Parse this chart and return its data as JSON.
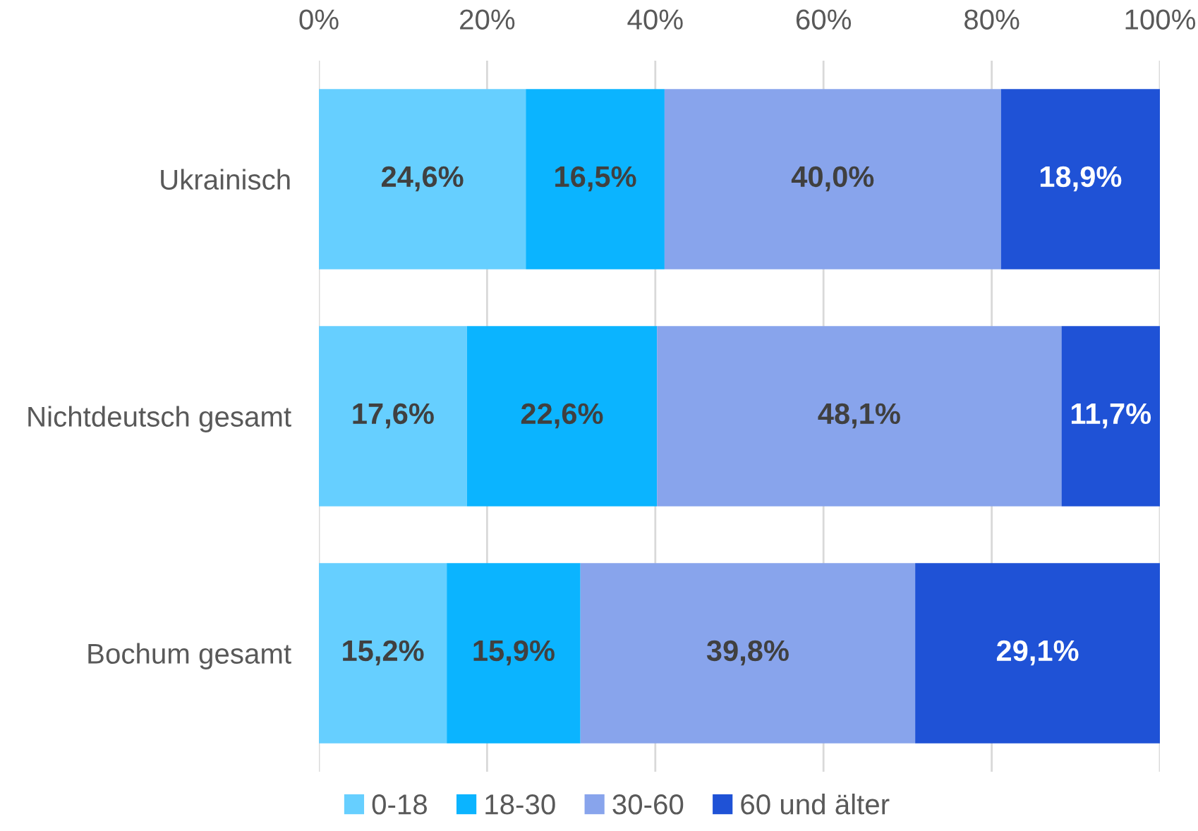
{
  "chart_data": {
    "type": "bar",
    "orientation": "horizontal",
    "stacked": true,
    "categories": [
      "Ukrainisch",
      "Nichtdeutsch gesamt",
      "Bochum gesamt"
    ],
    "series": [
      {
        "name": "0-18",
        "color": "#66cfff",
        "values": [
          24.6,
          17.6,
          15.2
        ],
        "value_labels": [
          "24,6%",
          "17,6%",
          "15,2%"
        ]
      },
      {
        "name": "18-30",
        "color": "#0bb4ff",
        "values": [
          16.5,
          22.6,
          15.9
        ],
        "value_labels": [
          "16,5%",
          "22,6%",
          "15,9%"
        ]
      },
      {
        "name": "30-60",
        "color": "#88a4ec",
        "values": [
          40.0,
          48.1,
          39.8
        ],
        "value_labels": [
          "40,0%",
          "48,1%",
          "39,8%"
        ]
      },
      {
        "name": "60 und älter",
        "color": "#1f52d6",
        "values": [
          18.9,
          11.7,
          29.1
        ],
        "value_labels": [
          "18,9%",
          "11,7%",
          "29,1%"
        ]
      }
    ],
    "xlim": [
      0,
      100
    ],
    "xticks": [
      {
        "value": 0,
        "label": "0%"
      },
      {
        "value": 20,
        "label": "20%"
      },
      {
        "value": 40,
        "label": "40%"
      },
      {
        "value": 60,
        "label": "60%"
      },
      {
        "value": 80,
        "label": "80%"
      },
      {
        "value": 100,
        "label": "100%"
      }
    ],
    "grid": "x",
    "legend": "bottom"
  }
}
